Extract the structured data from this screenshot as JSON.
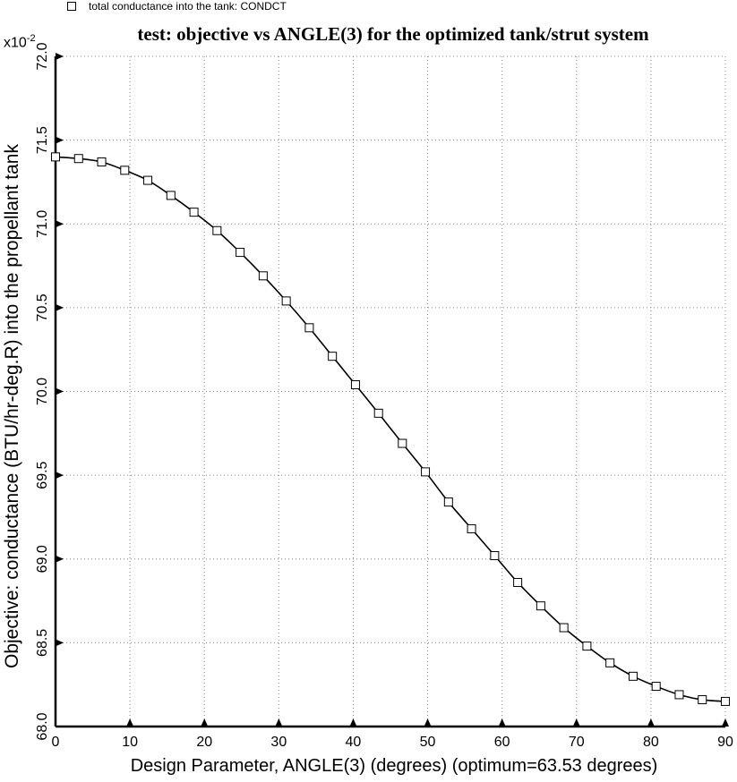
{
  "legend": {
    "label": "total conductance into the tank: CONDCT"
  },
  "chart_data": {
    "type": "line",
    "title": "test: objective vs ANGLE(3) for the optimized tank/strut system",
    "xlabel": "Design Parameter, ANGLE(3) (degrees) (optimum=63.53 degrees)",
    "ylabel": "Objective: conductance (BTU/hr-deg.R) into the propellant tank",
    "y_multiplier": "x10",
    "y_multiplier_exp": "-2",
    "xlim": [
      0,
      90
    ],
    "ylim": [
      68.0,
      72.0
    ],
    "x_ticks": [
      0,
      10,
      20,
      30,
      40,
      50,
      60,
      70,
      80,
      90
    ],
    "y_ticks": [
      68.0,
      68.5,
      69.0,
      69.5,
      70.0,
      70.5,
      71.0,
      71.5,
      72.0
    ],
    "x_tick_labels": [
      "0",
      "10",
      "20",
      "30",
      "40",
      "50",
      "60",
      "70",
      "80",
      "90"
    ],
    "y_tick_labels": [
      "68.0",
      "68.5",
      "69.0",
      "69.5",
      "70.0",
      "70.5",
      "71.0",
      "71.5",
      "72.0"
    ],
    "grid": true,
    "legend_position": "top-left",
    "series": [
      {
        "name": "total conductance into the tank: CONDCT",
        "marker": "square",
        "x": [
          0,
          3.1,
          6.2,
          9.3,
          12.4,
          15.5,
          18.6,
          21.7,
          24.8,
          27.9,
          31.0,
          34.1,
          37.2,
          40.3,
          43.4,
          46.6,
          49.7,
          52.8,
          55.9,
          59.0,
          62.1,
          65.2,
          68.3,
          71.4,
          74.5,
          77.6,
          80.7,
          83.8,
          86.9,
          90.0
        ],
        "y": [
          71.4,
          71.39,
          71.37,
          71.32,
          71.26,
          71.17,
          71.07,
          70.96,
          70.83,
          70.69,
          70.54,
          70.38,
          70.21,
          70.04,
          69.87,
          69.69,
          69.52,
          69.34,
          69.18,
          69.02,
          68.86,
          68.72,
          68.59,
          68.48,
          68.38,
          68.3,
          68.24,
          68.19,
          68.16,
          68.15
        ]
      }
    ]
  }
}
